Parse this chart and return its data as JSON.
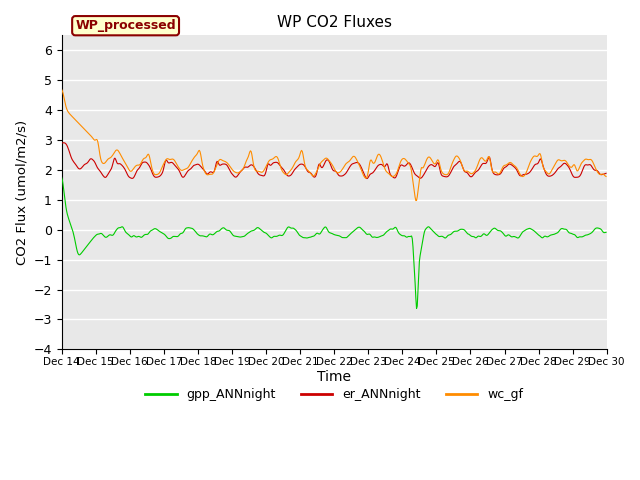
{
  "title": "WP CO2 Fluxes",
  "xlabel": "Time",
  "ylabel": "CO2 Flux (umol/m2/s)",
  "ylim": [
    -4.0,
    6.5
  ],
  "yticks": [
    -4.0,
    -3.0,
    -2.0,
    -1.0,
    0.0,
    1.0,
    2.0,
    3.0,
    4.0,
    5.0,
    6.0
  ],
  "bg_color": "#e8e8e8",
  "grid_color": "white",
  "annotation_text": "WP_processed",
  "annotation_facecolor": "#ffffcc",
  "annotation_edgecolor": "#8b0000",
  "annotation_textcolor": "#8b0000",
  "line_colors": {
    "gpp": "#00cc00",
    "er": "#cc0000",
    "wc": "#ff8c00"
  },
  "legend_labels": [
    "gpp_ANNnight",
    "er_ANNnight",
    "wc_gf"
  ],
  "n_days": 16,
  "start_day": 14,
  "points_per_day": 48
}
